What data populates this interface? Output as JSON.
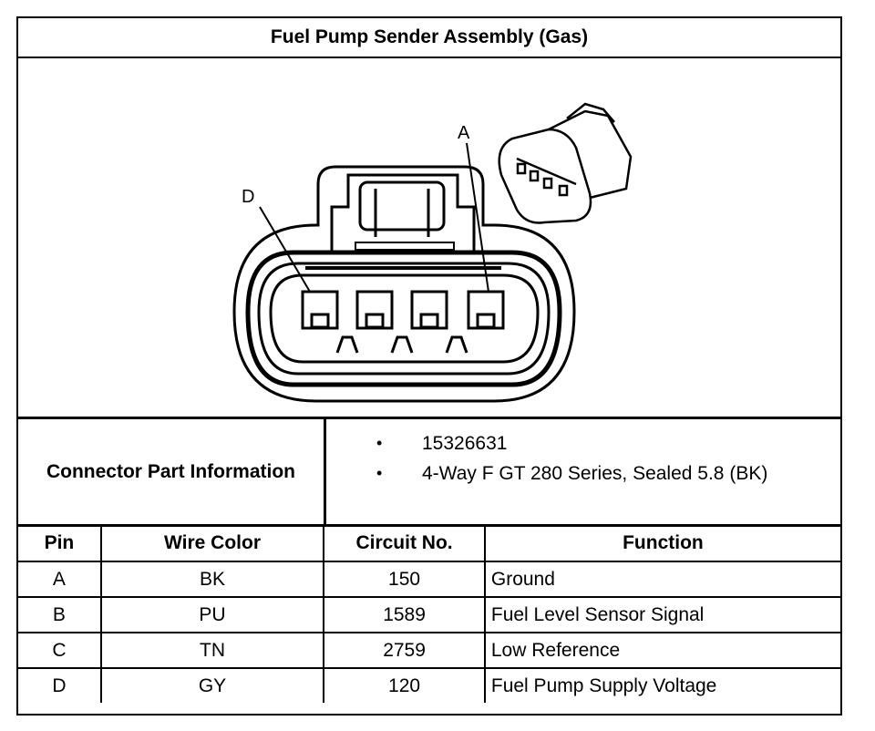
{
  "title": "Fuel Pump Sender Assembly (Gas)",
  "diagram": {
    "pin_labels": [
      "A",
      "D"
    ]
  },
  "connector_info": {
    "label": "Connector Part Information",
    "items": [
      "15326631",
      "4-Way F GT 280 Series, Sealed 5.8 (BK)"
    ],
    "bullet": "•"
  },
  "table": {
    "headers": [
      "Pin",
      "Wire Color",
      "Circuit No.",
      "Function"
    ],
    "rows": [
      [
        "A",
        "BK",
        "150",
        "Ground"
      ],
      [
        "B",
        "PU",
        "1589",
        "Fuel Level Sensor Signal"
      ],
      [
        "C",
        "TN",
        "2759",
        "Low Reference"
      ],
      [
        "D",
        "GY",
        "120",
        "Fuel Pump Supply Voltage"
      ]
    ]
  }
}
